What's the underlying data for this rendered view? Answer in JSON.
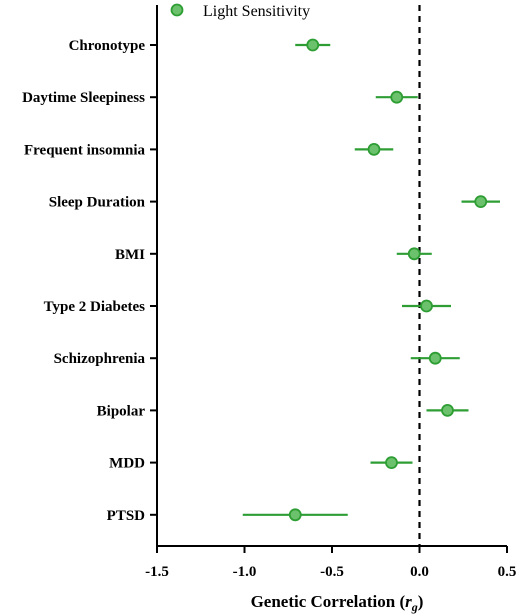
{
  "chart_data": {
    "type": "scatter",
    "subtype": "forest-plot",
    "title": "",
    "xlabel": "Genetic Correlation",
    "xlabel_symbol": "r",
    "xlabel_subscript": "g",
    "ylabel": "",
    "xlim": [
      -1.5,
      0.5
    ],
    "xticks": [
      -1.5,
      -1.0,
      -0.5,
      0.0,
      0.5
    ],
    "xtick_labels": [
      "-1.5",
      "-1.0",
      "-0.5",
      "0.0",
      "0.5"
    ],
    "reference_line": 0.0,
    "grid": false,
    "legend": {
      "position": "top-left",
      "entries": [
        "Light Sensitivity"
      ]
    },
    "color": "#2e9e34",
    "marker_fill": "#6cc26c",
    "categories": [
      "Chronotype",
      "Daytime Sleepiness",
      "Frequent insomnia",
      "Sleep Duration",
      "BMI",
      "Type 2 Diabetes",
      "Schizophrenia",
      "Bipolar",
      "MDD",
      "PTSD"
    ],
    "series": [
      {
        "name": "Light Sensitivity",
        "values": [
          -0.61,
          -0.13,
          -0.26,
          0.35,
          -0.03,
          0.04,
          0.09,
          0.16,
          -0.16,
          -0.71
        ],
        "ci_low": [
          -0.71,
          -0.25,
          -0.37,
          0.24,
          -0.13,
          -0.1,
          -0.05,
          0.04,
          -0.28,
          -1.01
        ],
        "ci_high": [
          -0.51,
          -0.01,
          -0.15,
          0.46,
          0.07,
          0.18,
          0.23,
          0.28,
          -0.04,
          -0.41
        ]
      }
    ]
  }
}
